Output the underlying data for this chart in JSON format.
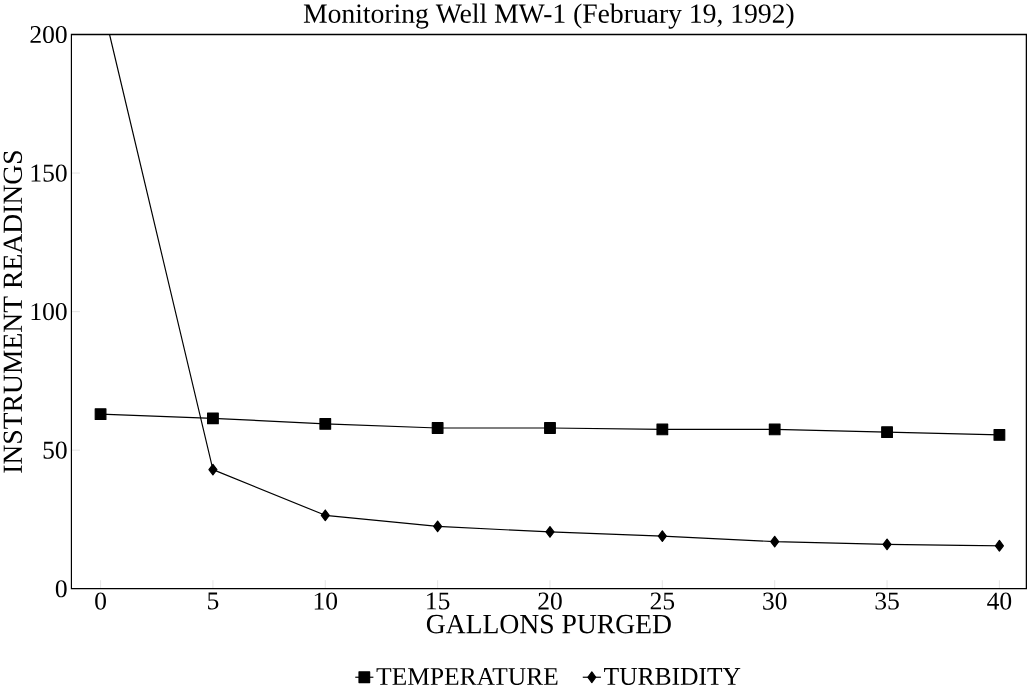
{
  "chart_data": {
    "type": "line",
    "title": "Monitoring Well MW-1 (February 19, 1992)",
    "xlabel": "GALLONS PURGED",
    "ylabel": "INSTRUMENT READINGS",
    "x": [
      0,
      5,
      10,
      15,
      20,
      25,
      30,
      35,
      40
    ],
    "series": [
      {
        "name": "TEMPERATURE",
        "color": "#000000",
        "marker": "square",
        "values": [
          63,
          61.5,
          59.5,
          58,
          58,
          57.5,
          57.5,
          56.5,
          55.5
        ]
      },
      {
        "name": "TURBIDITY",
        "color": "#000000",
        "marker": "diamond",
        "x": [
          0.4,
          5,
          10,
          15,
          20,
          25,
          30,
          35,
          40
        ],
        "values": [
          200,
          43,
          26.5,
          22.5,
          20.5,
          19,
          17,
          16,
          15.5
        ]
      }
    ],
    "xlim": [
      -1.3,
      41.2
    ],
    "ylim": [
      0,
      200
    ],
    "xticks": [
      0,
      5,
      10,
      15,
      20,
      25,
      30,
      35,
      40
    ],
    "yticks": [
      0,
      50,
      100,
      150,
      200
    ],
    "grid": false,
    "legend": "bottom",
    "line_style": "solid"
  }
}
